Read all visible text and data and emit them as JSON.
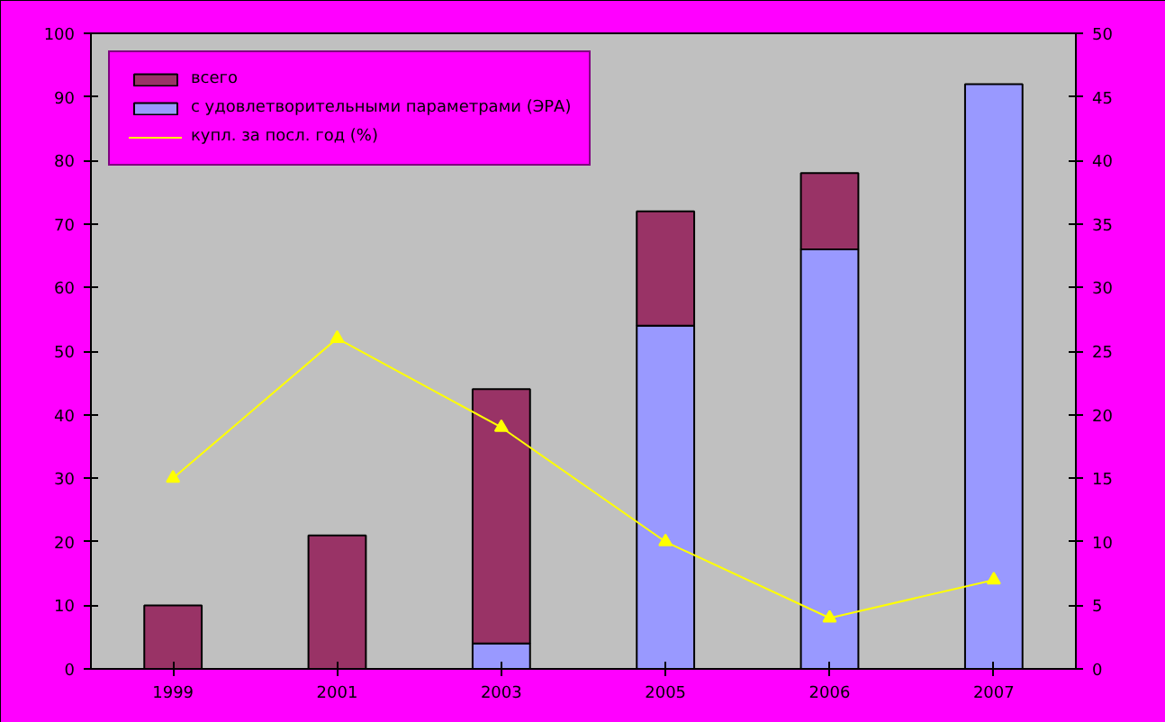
{
  "chart_data": {
    "type": "bar",
    "stacked": true,
    "categories": [
      "1999",
      "2001",
      "2003",
      "2005",
      "2006",
      "2007"
    ],
    "series": [
      {
        "name": "с удовлетворительными параметрами (ЭРА)",
        "color": "#9999ff",
        "values": [
          0,
          0,
          4,
          54,
          66,
          92
        ]
      },
      {
        "name": "всего",
        "color": "#993366",
        "values": [
          10,
          21,
          40,
          18,
          12,
          0
        ]
      },
      {
        "name": "купл. за посл. год (%)",
        "type": "line",
        "axis": "y2",
        "color": "#ffff00",
        "marker": "triangle",
        "values": [
          15,
          26,
          19,
          10,
          4,
          7
        ]
      }
    ],
    "ylim": [
      0,
      100
    ],
    "yticks": [
      0,
      10,
      20,
      30,
      40,
      50,
      60,
      70,
      80,
      90,
      100
    ],
    "y2lim": [
      0,
      50
    ],
    "y2ticks": [
      0,
      5,
      10,
      15,
      20,
      25,
      30,
      35,
      40,
      45,
      50
    ],
    "legend": "top left",
    "grid": false
  }
}
